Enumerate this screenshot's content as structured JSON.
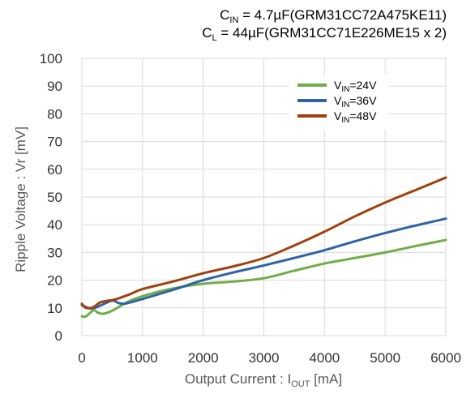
{
  "conditions": {
    "cin": {
      "sym": "C",
      "sub": "IN",
      "rest": " = 4.7µF(GRM31CC72A475KE11)"
    },
    "cl": {
      "sym": "C",
      "sub": "L",
      "rest": " = 44µF(GRM31CC71E226ME15   x 2)"
    }
  },
  "axis_titles": {
    "x": {
      "pre": "Output Current : I",
      "sub": "OUT",
      "post": "  [mA]"
    },
    "y": "Ripple Voltage : Vr [mV]"
  },
  "colors": {
    "series_24": "#70AD47",
    "series_36": "#2F63A8",
    "series_48": "#A0410D",
    "grid": "#D9D9D9"
  },
  "chart_data": {
    "type": "line",
    "xlabel": "Output Current : IOUT  [mA]",
    "ylabel": "Ripple Voltage : Vr [mV]",
    "xlim": [
      0,
      6000
    ],
    "ylim": [
      0,
      100
    ],
    "xticks": [
      "0",
      "1000",
      "2000",
      "3000",
      "4000",
      "5000",
      "6000"
    ],
    "yticks": [
      "0",
      "10",
      "20",
      "30",
      "40",
      "50",
      "60",
      "70",
      "80",
      "90",
      "100"
    ],
    "grid": true,
    "legend_position": "top-right",
    "series": [
      {
        "name": "VIN=24V",
        "name_parts": {
          "pre": "V",
          "sub": "IN",
          "post": "=24V"
        },
        "color": "#70AD47",
        "x": [
          0,
          50,
          100,
          150,
          200,
          250,
          300,
          350,
          400,
          500,
          600,
          700,
          800,
          900,
          1000,
          1200,
          1500,
          2000,
          2500,
          3000,
          3500,
          4000,
          4500,
          5000,
          5500,
          6000
        ],
        "y": [
          7,
          6.8,
          7.5,
          8.5,
          9.2,
          8.5,
          8,
          7.9,
          8.1,
          9,
          10.2,
          11.5,
          12.6,
          13.5,
          14.2,
          15.5,
          17,
          18.7,
          19.5,
          20.7,
          23.4,
          26,
          28,
          30,
          32.3,
          34.5
        ]
      },
      {
        "name": "VIN=36V",
        "name_parts": {
          "pre": "V",
          "sub": "IN",
          "post": "=36V"
        },
        "color": "#2F63A8",
        "x": [
          0,
          50,
          100,
          150,
          200,
          250,
          300,
          350,
          400,
          450,
          500,
          550,
          600,
          700,
          800,
          1000,
          1500,
          2000,
          2500,
          3000,
          3500,
          4000,
          4500,
          5000,
          5500,
          6000
        ],
        "y": [
          11,
          10.5,
          10,
          9.8,
          10,
          10.3,
          10.8,
          11.3,
          11.8,
          12.3,
          12.6,
          12.4,
          11.8,
          11.5,
          12,
          13.2,
          16.5,
          20,
          22.8,
          25.3,
          28,
          30.8,
          34,
          37,
          39.7,
          42.2
        ]
      },
      {
        "name": "VIN=48V",
        "name_parts": {
          "pre": "V",
          "sub": "IN",
          "post": "=48V"
        },
        "color": "#A0410D",
        "x": [
          0,
          50,
          100,
          150,
          200,
          250,
          300,
          400,
          500,
          600,
          800,
          1000,
          1500,
          2000,
          2500,
          3000,
          3500,
          4000,
          4500,
          5000,
          5500,
          6000
        ],
        "y": [
          11.5,
          10.2,
          9.9,
          10,
          10.4,
          11.2,
          12,
          12.5,
          12.8,
          13.4,
          15,
          16.8,
          19.5,
          22.5,
          25,
          28,
          32.5,
          37.5,
          43,
          48,
          52.5,
          57
        ]
      }
    ]
  }
}
